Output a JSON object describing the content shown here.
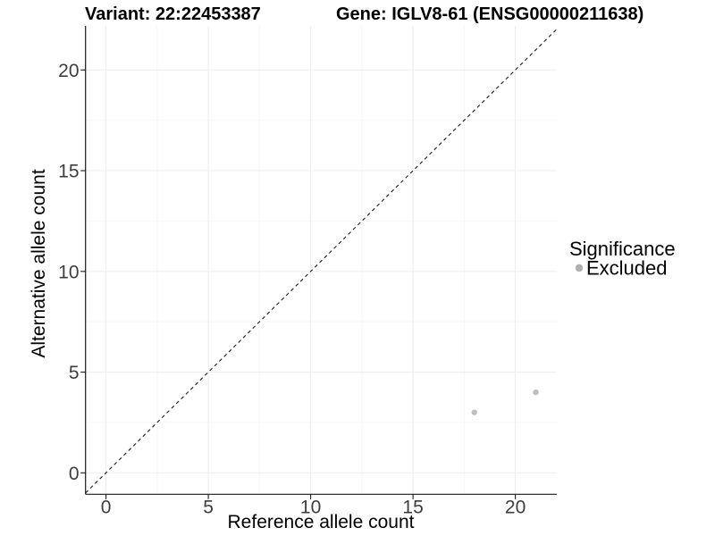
{
  "header": {
    "variant_title": "Variant: 22:22453387",
    "gene_title": "Gene: IGLV8-61 (ENSG00000211638)"
  },
  "chart_data": {
    "type": "scatter",
    "title": "Variant: 22:22453387 — Gene: IGLV8-61 (ENSG00000211638)",
    "xlabel": "Reference allele count",
    "ylabel": "Alternative allele count",
    "xlim": [
      -1,
      22
    ],
    "ylim": [
      -1,
      22.2
    ],
    "x_ticks": [
      0,
      5,
      10,
      15,
      20
    ],
    "y_ticks": [
      0,
      5,
      10,
      15,
      20
    ],
    "grid": "major+minor",
    "identity_line": {
      "type": "abline",
      "slope": 1,
      "intercept": 0,
      "style": "dashed",
      "color": "#1a1a1a"
    },
    "series": [
      {
        "name": "Excluded",
        "color": "#bdbdbd",
        "point_radius": 3.2,
        "points": [
          [
            18,
            3
          ],
          [
            21,
            4
          ]
        ]
      }
    ],
    "legend": {
      "position": "right",
      "title": "Significance",
      "entries": [
        {
          "label": "Excluded",
          "color": "#b0b0b0"
        }
      ]
    }
  },
  "colors": {
    "grid_major": "#ededed",
    "grid_minor": "#f6f6f6",
    "axis": "#1a1a1a",
    "tick_text": "#3d3d3d"
  }
}
